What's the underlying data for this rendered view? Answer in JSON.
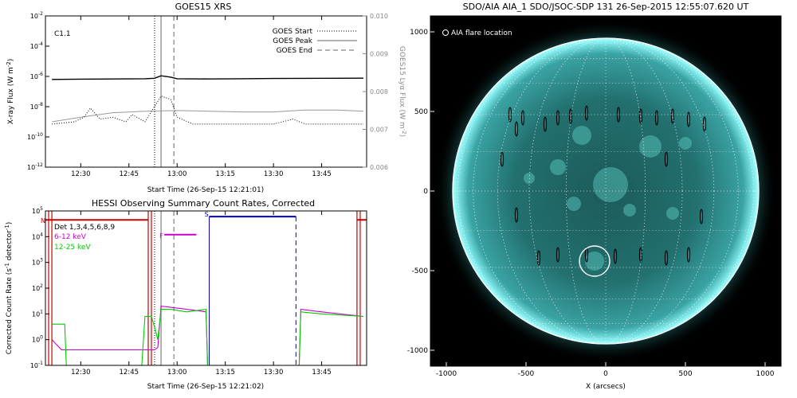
{
  "chart_data": [
    {
      "type": "line",
      "title": "GOES15 XRS",
      "xlabel": "Start Time (26-Sep-15 12:21:01)",
      "ylabel": "X-ray Flux (W m^-2)",
      "y2label": "GOES15 Lyα Flux (W m^-2)",
      "xrange": [
        "12:19",
        "13:59"
      ],
      "xticks": [
        "12:30",
        "12:45",
        "13:00",
        "13:15",
        "13:30",
        "13:45"
      ],
      "yscale": "log",
      "ylim": [
        1e-12,
        0.01
      ],
      "yticks": [
        "10^-12",
        "10^-10",
        "10^-8",
        "10^-6",
        "10^-4",
        "10^-2"
      ],
      "y2lim": [
        0.006,
        0.01
      ],
      "y2ticks": [
        "0.006",
        "0.007",
        "0.008",
        "0.009",
        "0.010"
      ],
      "annotation": "C1.1",
      "legend": {
        "placement": "top-right",
        "entries": [
          "GOES Start",
          "GOES Peak",
          "GOES End"
        ]
      },
      "markers": {
        "goes_start": "12:53",
        "goes_peak": "12:55",
        "goes_end": "12:59"
      },
      "series": [
        {
          "color": "#000000",
          "style": "solid",
          "x": [
            "12:21",
            "12:30",
            "12:40",
            "12:50",
            "12:53",
            "12:55",
            "12:58",
            "13:00",
            "13:10",
            "13:20",
            "13:30",
            "13:40",
            "13:50",
            "13:58"
          ],
          "y": [
            6.3e-07,
            6.6e-07,
            6.8e-07,
            7e-07,
            7.6e-07,
            1.1e-06,
            9e-07,
            7e-07,
            6.8e-07,
            7e-07,
            7.3e-07,
            7.5e-07,
            7.6e-07,
            7.7e-07
          ]
        },
        {
          "color": "#999999",
          "style": "solid",
          "x": [
            "12:21",
            "12:30",
            "12:40",
            "12:50",
            "13:00",
            "13:10",
            "13:20",
            "13:30",
            "13:40",
            "13:50",
            "13:58"
          ],
          "y": [
            1e-09,
            2e-09,
            4e-09,
            5e-09,
            5.5e-09,
            5e-09,
            4.5e-09,
            4.5e-09,
            6e-09,
            6e-09,
            5e-09
          ]
        },
        {
          "color": "#000000",
          "style": "dotted",
          "x": [
            "12:21",
            "12:28",
            "12:31",
            "12:33",
            "12:36",
            "12:40",
            "12:44",
            "12:46",
            "12:50",
            "12:55",
            "12:58",
            "13:00",
            "13:05",
            "13:30",
            "13:36",
            "13:40",
            "13:58"
          ],
          "y": [
            7e-10,
            1e-09,
            2e-09,
            8e-09,
            1.5e-09,
            2e-09,
            1e-09,
            3e-09,
            1e-09,
            5e-08,
            3e-08,
            2e-09,
            7e-10,
            7e-10,
            1.5e-09,
            7e-10,
            7e-10
          ]
        }
      ]
    },
    {
      "type": "line",
      "title": "HESSI Observing Summary Count Rates, Corrected",
      "xlabel": "Start Time (26-Sep-15 12:21:02)",
      "ylabel": "Corrected Count Rate (s^-1 detector^-1)",
      "xrange": [
        "12:19",
        "13:59"
      ],
      "xticks": [
        "12:30",
        "12:45",
        "13:00",
        "13:15",
        "13:30",
        "13:45"
      ],
      "yscale": "log",
      "ylim": [
        0.1,
        100000.0
      ],
      "yticks": [
        "10^-1",
        "10^0",
        "10^1",
        "10^2",
        "10^3",
        "10^4",
        "10^5"
      ],
      "legend": {
        "placement": "top-left",
        "entries": [
          "Det 1,3,4,5,6,8,9",
          "6-12 keV",
          "12-25 keV"
        ]
      },
      "flags": [
        {
          "label": "N",
          "color": "#cc0000",
          "x": [
            "12:19",
            "12:51"
          ],
          "y": 45000
        },
        {
          "label": "F",
          "color": "#cc00cc",
          "x": [
            "12:56",
            "13:06"
          ],
          "y": 12000
        },
        {
          "label": "S",
          "color": "#0000cc",
          "x": [
            "13:10",
            "13:37"
          ],
          "y": 60000
        }
      ],
      "markers": {
        "goes_start": "12:53",
        "goes_peak": "12:55",
        "goes_end": "12:59"
      },
      "series": [
        {
          "name": "6-12 keV",
          "color": "#cc00cc",
          "x": [
            "12:21",
            "12:24",
            "12:25",
            "12:50",
            "12:51",
            "12:53",
            "12:54",
            "12:55",
            "12:58",
            "13:03",
            "13:09",
            "13:09.5",
            "13:38",
            "13:38.5",
            "13:45",
            "13:58"
          ],
          "y": [
            1.0,
            0.4,
            0.4,
            0.4,
            0.4,
            0.4,
            0.5,
            20,
            18,
            15,
            12,
            0.1,
            0.1,
            15,
            12,
            8
          ]
        },
        {
          "name": "12-25 keV",
          "color": "#00cc00",
          "x": [
            "12:21",
            "12:25",
            "12:25.5",
            "12:49",
            "12:50",
            "12:52",
            "12:53",
            "12:54",
            "12:55",
            "12:58",
            "13:03",
            "13:09",
            "13:09.5",
            "13:38",
            "13:38.5",
            "13:45",
            "13:58"
          ],
          "y": [
            4.0,
            4.0,
            0.1,
            0.1,
            8,
            8,
            3,
            1,
            15,
            15,
            12,
            15,
            0.1,
            0.1,
            12,
            10,
            8
          ]
        }
      ]
    },
    {
      "type": "heatmap",
      "title": "SDO/AIA AIA_1 SDO/JSOC-SDP 131 26-Sep-2015 12:55:07.620 UT",
      "xlabel": "X (arcsecs)",
      "ylabel": "",
      "xlim": [
        -1100,
        1100
      ],
      "ylim": [
        -1100,
        1100
      ],
      "xticks": [
        "-1000",
        "-500",
        "0",
        "500",
        "1000"
      ],
      "yticks": [
        "-1000",
        "-500",
        "0",
        "500",
        "1000"
      ],
      "legend": {
        "placement": "top-left",
        "entries": [
          "AIA flare location"
        ]
      },
      "flare_location": {
        "x": -70,
        "y": -440,
        "radius": 95
      },
      "solar_radius": 960,
      "colors": {
        "colormap": "teal",
        "disk": "#2a8383",
        "limb": "#7fe8e8"
      }
    }
  ]
}
